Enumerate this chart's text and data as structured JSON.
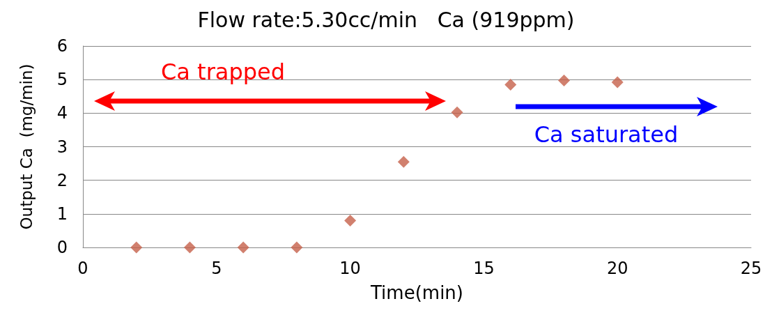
{
  "chart_data": {
    "type": "scatter",
    "title": "Flow rate:5.30cc/min   Ca (919ppm)",
    "xlabel": "Time(min)",
    "ylabel": "Output Ca  (mg/min)",
    "x": [
      2,
      4,
      6,
      8,
      10,
      12,
      14,
      16,
      18,
      20
    ],
    "series": [
      {
        "color": "#c5604a",
        "values": [
          0,
          0,
          0,
          0,
          0.8,
          2.55,
          4.02,
          4.85,
          4.97,
          4.92
        ]
      }
    ],
    "xlim": [
      0,
      25
    ],
    "xticks": [
      0,
      5,
      10,
      15,
      20,
      25
    ],
    "ylim": [
      0,
      6
    ],
    "yticks": [
      0,
      1,
      2,
      3,
      4,
      5,
      6
    ],
    "grid": "y",
    "marker": "diamond",
    "annotations": [
      "Ca trapped",
      "Ca saturated"
    ]
  }
}
